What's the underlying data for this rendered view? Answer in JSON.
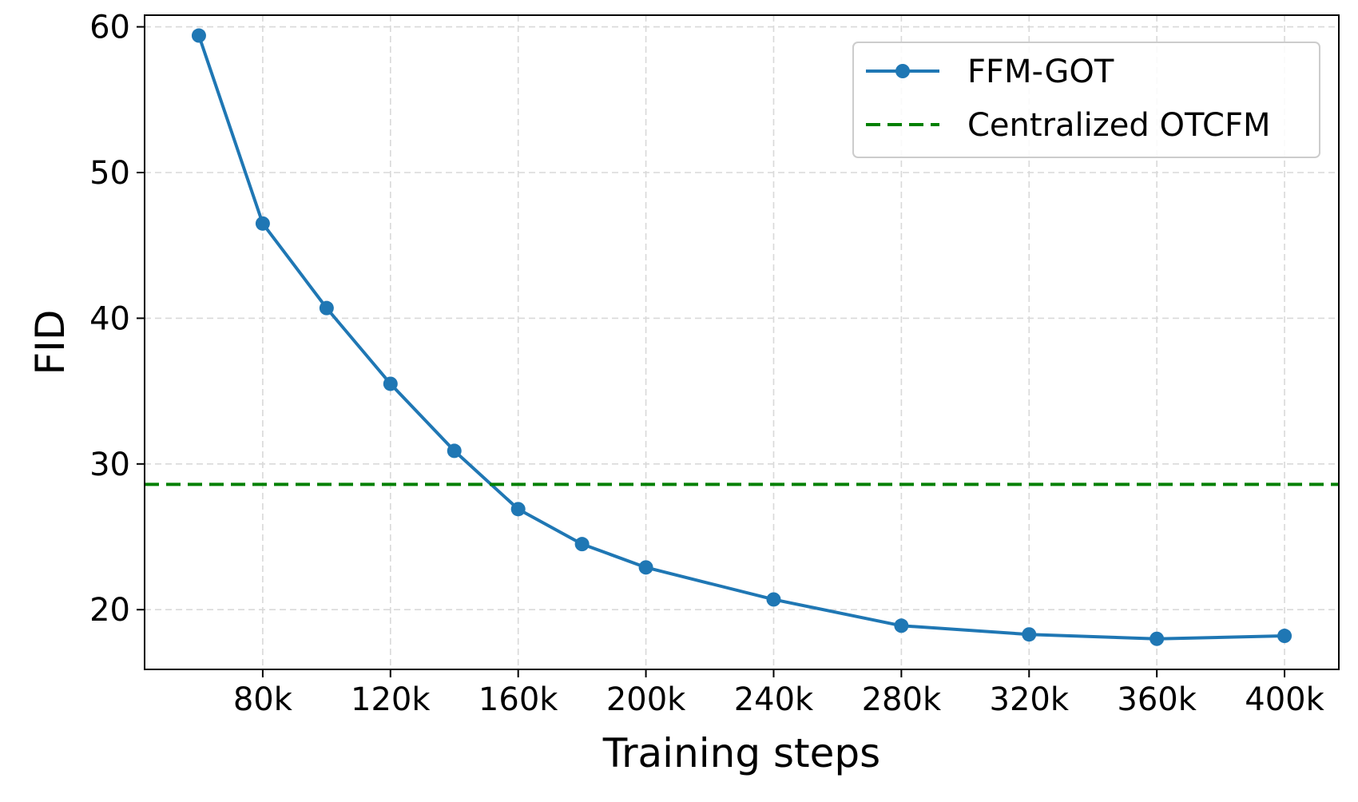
{
  "chart_data": {
    "type": "line",
    "title": "",
    "xlabel": "Training steps",
    "ylabel": "FID",
    "x_tick_values": [
      80000,
      120000,
      160000,
      200000,
      240000,
      280000,
      320000,
      360000,
      400000
    ],
    "x_tick_labels": [
      "80k",
      "120k",
      "160k",
      "200k",
      "240k",
      "280k",
      "320k",
      "360k",
      "400k"
    ],
    "y_tick_values": [
      20,
      30,
      40,
      50,
      60
    ],
    "y_tick_labels": [
      "20",
      "30",
      "40",
      "50",
      "60"
    ],
    "xlim": [
      43000,
      417000
    ],
    "ylim": [
      15.9,
      60.8
    ],
    "grid": true,
    "legend_position": "top-right",
    "series": [
      {
        "name": "FFM-GOT",
        "color": "#1f77b4",
        "marker": "circle",
        "line_style": "solid",
        "x": [
          60000,
          80000,
          100000,
          120000,
          140000,
          160000,
          180000,
          200000,
          240000,
          280000,
          320000,
          360000,
          400000
        ],
        "y": [
          59.4,
          46.5,
          40.7,
          35.5,
          30.9,
          26.9,
          24.5,
          22.9,
          20.7,
          18.9,
          18.3,
          18.0,
          18.2
        ]
      },
      {
        "name": "Centralized OTCFM",
        "color": "#008000",
        "line_style": "dashed",
        "type": "hline",
        "y_value": 28.6
      }
    ]
  }
}
